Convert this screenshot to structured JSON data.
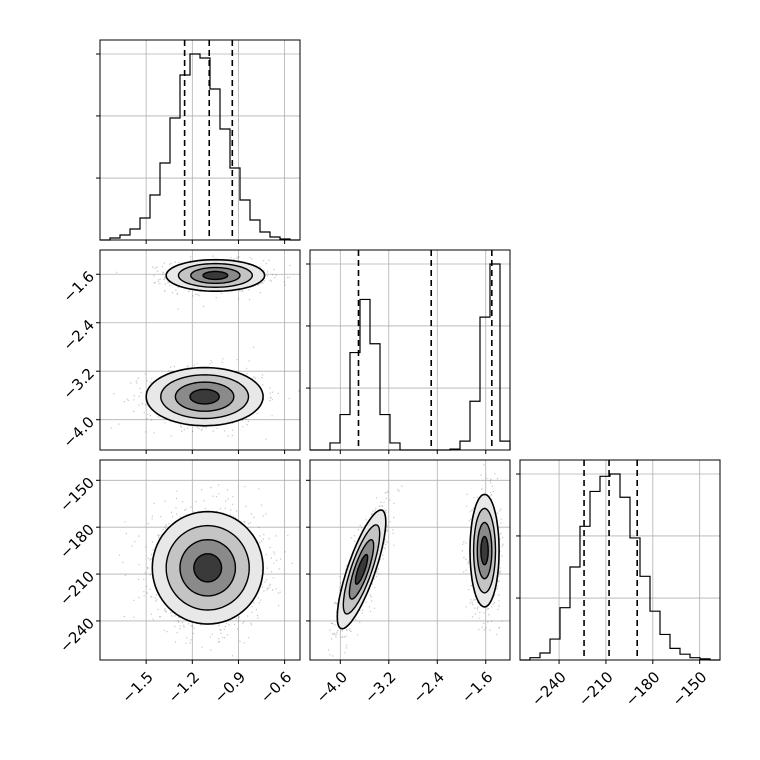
{
  "chart_data": {
    "type": "corner",
    "grid": true,
    "title": "",
    "parameters": [
      {
        "range": [
          -1.8,
          -0.5
        ],
        "ticks": [
          -1.5,
          -1.2,
          -0.9,
          -0.6
        ],
        "tick_labels": [
          "−1.5",
          "−1.2",
          "−0.9",
          "−0.6"
        ],
        "quantiles": [
          -1.25,
          -1.09,
          -0.94
        ],
        "histogram": {
          "bin_edges": [
            -1.8,
            -1.735,
            -1.67,
            -1.605,
            -1.54,
            -1.475,
            -1.41,
            -1.345,
            -1.28,
            -1.215,
            -1.15,
            -1.085,
            -1.02,
            -0.955,
            -0.89,
            -0.825,
            -0.76,
            -0.695,
            -0.63,
            -0.565,
            -0.5
          ],
          "counts": [
            0,
            2,
            5,
            11,
            22,
            45,
            77,
            122,
            165,
            186,
            182,
            151,
            111,
            72,
            40,
            20,
            8,
            3,
            1,
            0
          ]
        }
      },
      {
        "range": [
          -4.5,
          -1.2
        ],
        "ticks": [
          -4.0,
          -3.2,
          -2.4,
          -1.6
        ],
        "tick_labels": [
          "−4.0",
          "−3.2",
          "−2.4",
          "−1.6"
        ],
        "quantiles": [
          -3.7,
          -2.5,
          -1.5
        ],
        "histogram": {
          "bin_edges": [
            -4.5,
            -4.335,
            -4.17,
            -4.005,
            -3.84,
            -3.675,
            -3.51,
            -3.345,
            -3.18,
            -3.015,
            -2.85,
            -2.685,
            -2.52,
            -2.355,
            -2.19,
            -2.025,
            -1.86,
            -1.695,
            -1.53,
            -1.365,
            -1.2
          ],
          "counts": [
            0,
            0,
            8,
            40,
            110,
            170,
            120,
            40,
            8,
            0,
            0,
            0,
            0,
            0,
            1,
            10,
            55,
            150,
            210,
            10
          ]
        }
      },
      {
        "range": [
          -265,
          -137
        ],
        "ticks": [
          -240,
          -210,
          -180,
          -150
        ],
        "tick_labels": [
          "−240",
          "−210",
          "−180",
          "−150"
        ],
        "quantiles": [
          -224,
          -208,
          -190
        ],
        "histogram": {
          "bin_edges": [
            -265,
            -258.6,
            -252.2,
            -245.8,
            -239.4,
            -233,
            -226.6,
            -220.2,
            -213.8,
            -207.4,
            -201,
            -194.6,
            -188.2,
            -181.8,
            -175.4,
            -169,
            -162.6,
            -156.2,
            -149.8,
            -143.4,
            -137
          ],
          "counts": [
            0,
            2,
            6,
            18,
            45,
            80,
            115,
            145,
            158,
            160,
            140,
            105,
            72,
            42,
            22,
            10,
            5,
            2,
            1,
            0
          ]
        }
      }
    ],
    "pairs": [
      {
        "x_param": 0,
        "y_param": 1,
        "clusters": [
          {
            "center": [
              -1.05,
              -1.62
            ],
            "sigma": [
              0.16,
              0.13
            ],
            "weight": 0.5
          },
          {
            "center": [
              -1.12,
              -3.62
            ],
            "sigma": [
              0.19,
              0.24
            ],
            "weight": 0.5
          }
        ]
      },
      {
        "x_param": 0,
        "y_param": 2,
        "clusters": [
          {
            "center": [
              -1.1,
              -206
            ],
            "sigma": [
              0.18,
              18
            ],
            "weight": 1.0
          }
        ]
      },
      {
        "x_param": 1,
        "y_param": 2,
        "clusters": [
          {
            "center": [
              -3.65,
              -207
            ],
            "sigma": [
              0.2,
              19
            ],
            "rho": 0.8,
            "weight": 0.5
          },
          {
            "center": [
              -1.62,
              -195
            ],
            "sigma": [
              0.12,
              18
            ],
            "rho": 0.0,
            "weight": 0.5
          }
        ]
      }
    ]
  }
}
